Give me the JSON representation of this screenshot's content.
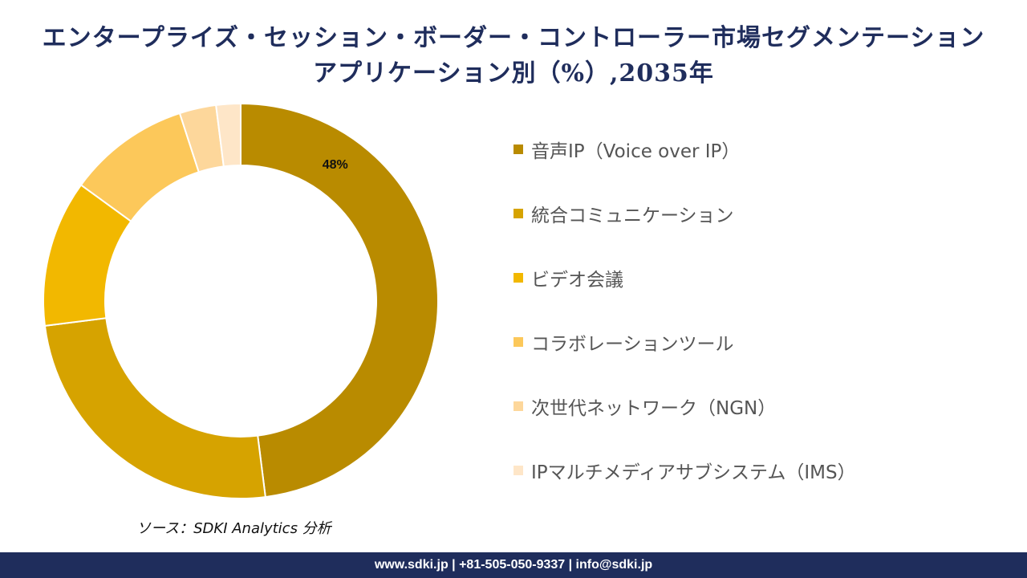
{
  "chart_data": {
    "type": "pie",
    "title": "エンタープライズ・セッション・ボーダー・コントローラー市場セグメンテーションアプリケーション別（%）,2035年",
    "categories": [
      "音声IP（Voice over IP）",
      "統合コミュニケーション",
      "ビデオ会議",
      "コラボレーションツール",
      "次世代ネットワーク（NGN）",
      "IPマルチメディアサブシステム（IMS）"
    ],
    "values": [
      48,
      25,
      12,
      10,
      3,
      2
    ],
    "data_labels": [
      "48%",
      "",
      "",
      "",
      "",
      ""
    ],
    "colors": [
      "#B98B00",
      "#D6A300",
      "#F2B800",
      "#FCC85A",
      "#FDD79B",
      "#FEE6C8"
    ],
    "donut": true,
    "legend_position": "right"
  },
  "source": "ソース：SDKI Analytics 分析",
  "footer": "www.sdki.jp | +81-505-050-9337 | info@sdki.jp"
}
